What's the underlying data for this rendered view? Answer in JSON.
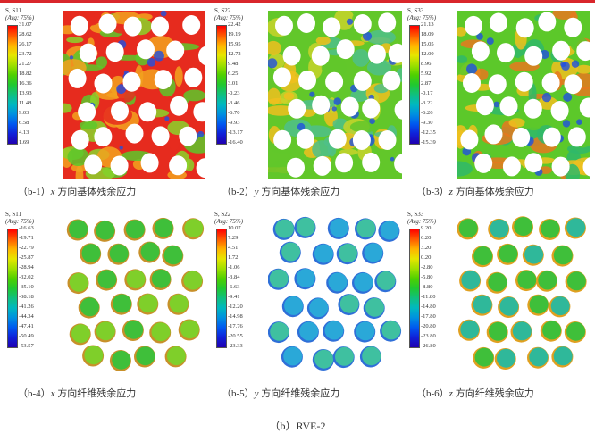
{
  "panels": [
    {
      "id": "b-1",
      "legend_title": "S, S11",
      "legend_avg": "(Avg: 75%)",
      "ticks": [
        "31.07",
        "28.62",
        "26.17",
        "23.72",
        "21.27",
        "18.82",
        "16.36",
        "13.93",
        "11.48",
        "9.03",
        "6.58",
        "4.13",
        "1.69"
      ],
      "caption_label": "（b-1）",
      "caption_var": "x",
      "caption_text": "方向基体残余应力",
      "type": "matrix",
      "palette": [
        "#e62b1e",
        "#f2a21e",
        "#5cc82a",
        "#8ad42a"
      ]
    },
    {
      "id": "b-2",
      "legend_title": "S, S22",
      "legend_avg": "(Avg: 75%)",
      "ticks": [
        "22.42",
        "19.19",
        "15.95",
        "12.72",
        "9.48",
        "6.25",
        "3.01",
        "-0.23",
        "-3.46",
        "-6.70",
        "-9.93",
        "-13.17",
        "-16.40"
      ],
      "caption_label": "（b-2）",
      "caption_var": "y",
      "caption_text": "方向基体残余应力",
      "type": "matrix",
      "palette": [
        "#62c72a",
        "#c8d42a",
        "#f0c01e",
        "#4fc08a"
      ]
    },
    {
      "id": "b-3",
      "legend_title": "S, S33",
      "legend_avg": "(Avg: 75%)",
      "ticks": [
        "21.13",
        "18.09",
        "15.05",
        "12.00",
        "8.96",
        "5.92",
        "2.87",
        "-0.17",
        "-3.22",
        "-6.26",
        "-9.30",
        "-12.35",
        "-15.39"
      ],
      "caption_label": "（b-3）",
      "caption_var": "z",
      "caption_text": "方向基体残余应力",
      "type": "matrix",
      "palette": [
        "#5cc82a",
        "#f0c01e",
        "#2fb86a",
        "#e6781e"
      ]
    },
    {
      "id": "b-4",
      "legend_title": "S, S11",
      "legend_avg": "(Avg: 75%)",
      "ticks": [
        "-16.63",
        "-19.71",
        "-22.79",
        "-25.87",
        "-28.94",
        "-32.02",
        "-35.10",
        "-38.18",
        "-41.26",
        "-44.34",
        "-47.41",
        "-50.49",
        "-53.57"
      ],
      "caption_label": "（b-4）",
      "caption_var": "x",
      "caption_text": "方向纤维残余应力",
      "type": "fiber",
      "palette": [
        "#3fbf3a",
        "#7fcf2a",
        "#c8902a"
      ]
    },
    {
      "id": "b-5",
      "legend_title": "S, S22",
      "legend_avg": "(Avg: 75%)",
      "ticks": [
        "10.07",
        "7.29",
        "4.51",
        "1.72",
        "-1.06",
        "-3.84",
        "-6.63",
        "-9.41",
        "-12.20",
        "-14.98",
        "-17.76",
        "-20.55",
        "-23.33"
      ],
      "caption_label": "（b-5）",
      "caption_var": "y",
      "caption_text": "方向纤维残余应力",
      "type": "fiber",
      "palette": [
        "#2aa8d8",
        "#3fc0a0",
        "#2f6fd8"
      ]
    },
    {
      "id": "b-6",
      "legend_title": "S, S33",
      "legend_avg": "(Avg: 75%)",
      "ticks": [
        "9.20",
        "6.20",
        "3.20",
        "0.20",
        "-2.80",
        "-5.80",
        "-8.80",
        "-11.80",
        "-14.80",
        "-17.80",
        "-20.80",
        "-23.80",
        "-26.80"
      ],
      "caption_label": "（b-6）",
      "caption_var": "z",
      "caption_text": "方向纤维残余应力",
      "type": "fiber",
      "palette": [
        "#3fbf3a",
        "#2fb89a",
        "#e0a020"
      ]
    }
  ],
  "main_caption": "（b）RVE-2"
}
